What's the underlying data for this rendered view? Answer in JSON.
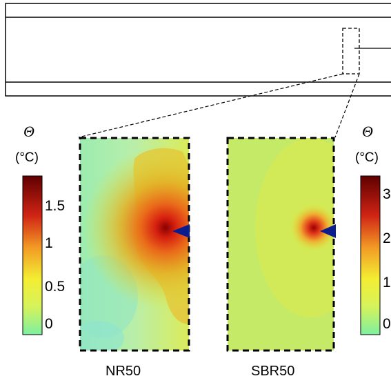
{
  "colorbar_left": {
    "quantity": "Θ",
    "unit": "(°C)",
    "ticks": [
      "1.5",
      "1",
      "0.5",
      "0"
    ]
  },
  "colorbar_right": {
    "quantity": "Θ",
    "unit": "(°C)",
    "ticks": [
      "3",
      "2",
      "1",
      "0"
    ]
  },
  "panels": [
    {
      "label": "NR50"
    },
    {
      "label": "SBR50"
    }
  ],
  "colors": {
    "cold": "#7ef0a0",
    "warm": "#e9f23a",
    "hot": "#6d0000",
    "crack_tip": "#0b1c8c"
  }
}
